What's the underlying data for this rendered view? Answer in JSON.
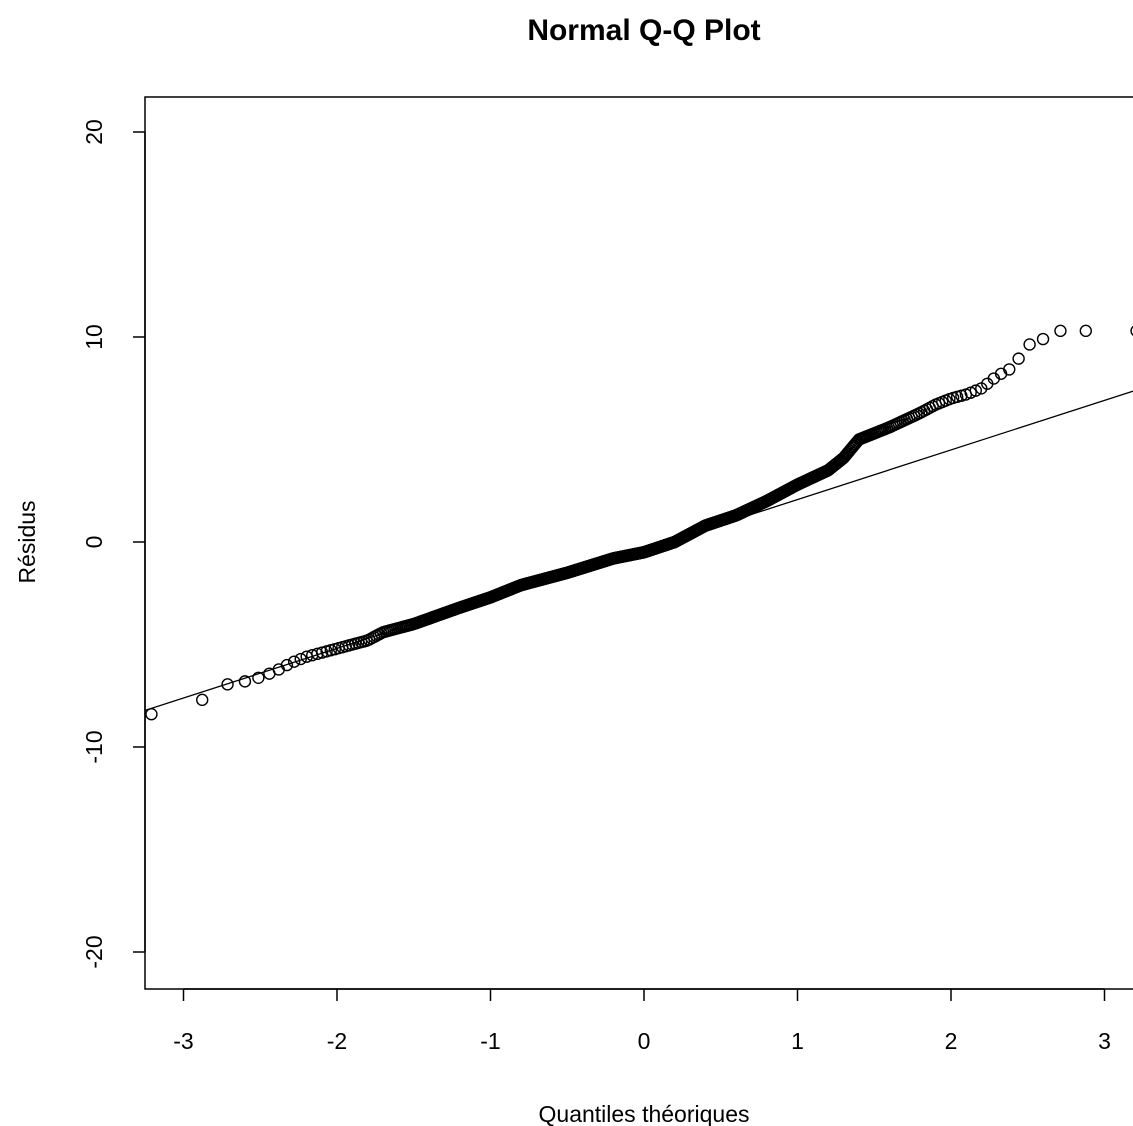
{
  "chart_data": {
    "type": "scatter",
    "title": "Normal Q-Q Plot",
    "xlabel": "Quantiles théoriques",
    "ylabel": "Résidus",
    "xlim": [
      -3.25,
      3.25
    ],
    "ylim": [
      -21.7,
      21.7
    ],
    "xticks": [
      -3,
      -2,
      -1,
      0,
      1,
      2,
      3
    ],
    "yticks": [
      -20,
      -10,
      0,
      10,
      20
    ],
    "grid": false,
    "legend": "none",
    "point_style": "open-circle",
    "reference_line": {
      "intercept": -0.35,
      "slope": 2.42
    },
    "n_points": 750,
    "sample_quantile_profile": {
      "theoretical": [
        -2.98,
        -2.82,
        -2.7,
        -2.6,
        -2.5,
        -2.4,
        -2.3,
        -2.2,
        -2.0,
        -1.8,
        -1.7,
        -1.5,
        -1.2,
        -1.0,
        -0.8,
        -0.5,
        -0.2,
        0.0,
        0.2,
        0.4,
        0.6,
        0.8,
        1.0,
        1.2,
        1.3,
        1.4,
        1.6,
        1.8,
        1.9,
        2.0,
        2.1,
        2.2,
        2.3,
        2.4,
        2.5,
        2.6,
        2.7,
        2.82,
        2.97
      ],
      "sample": [
        -8.4,
        -7.3,
        -6.9,
        -6.8,
        -6.6,
        -6.3,
        -5.9,
        -5.6,
        -5.2,
        -4.8,
        -4.4,
        -4.0,
        -3.2,
        -2.7,
        -2.1,
        -1.5,
        -0.8,
        -0.5,
        0.0,
        0.8,
        1.3,
        2.0,
        2.8,
        3.5,
        4.1,
        5.0,
        5.6,
        6.3,
        6.7,
        7.0,
        7.2,
        7.5,
        8.1,
        8.5,
        9.6,
        9.9,
        10.3,
        10.3,
        10.3
      ]
    }
  }
}
